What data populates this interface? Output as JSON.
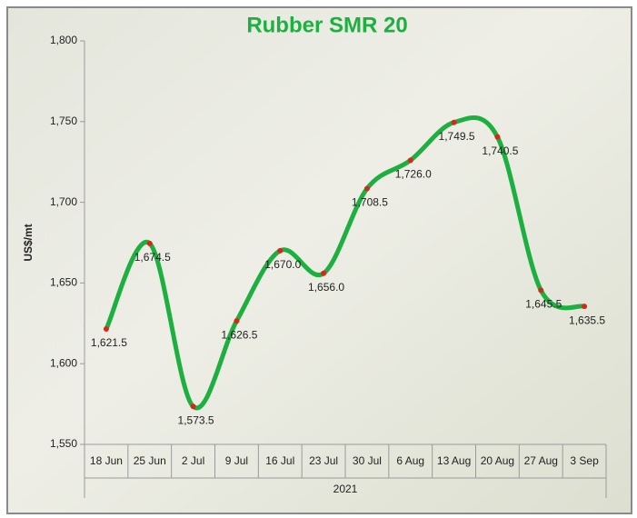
{
  "chart_data": {
    "type": "line",
    "title": "Rubber SMR 20",
    "ylabel": "US$/mt",
    "xgroup": "2021",
    "categories": [
      "18 Jun",
      "25 Jun",
      "2 Jul",
      "9 Jul",
      "16 Jul",
      "23 Jul",
      "30 Jul",
      "6 Aug",
      "13 Aug",
      "20 Aug",
      "27 Aug",
      "3 Sep"
    ],
    "series": [
      {
        "name": "Rubber SMR 20",
        "color": "#1db040",
        "marker_color": "#d9261c",
        "values": [
          1621.5,
          1674.5,
          1573.5,
          1626.5,
          1670.0,
          1656.0,
          1708.5,
          1726.0,
          1749.5,
          1740.5,
          1645.5,
          1635.5
        ],
        "value_labels": [
          "1,621.5",
          "1,674.5",
          "1,573.5",
          "1,626.5",
          "1,670.0",
          "1,656.0",
          "1,708.5",
          "1,726.0",
          "1,749.5",
          "1,740.5",
          "1,645.5",
          "1,635.5"
        ]
      }
    ],
    "ylim": [
      1550,
      1800
    ],
    "yticks": [
      {
        "value": 1550,
        "label": "1,550"
      },
      {
        "value": 1600,
        "label": "1,600"
      },
      {
        "value": 1650,
        "label": "1,650"
      },
      {
        "value": 1700,
        "label": "1,700"
      },
      {
        "value": 1750,
        "label": "1,750"
      },
      {
        "value": 1800,
        "label": "1,800"
      }
    ],
    "grid": false
  }
}
